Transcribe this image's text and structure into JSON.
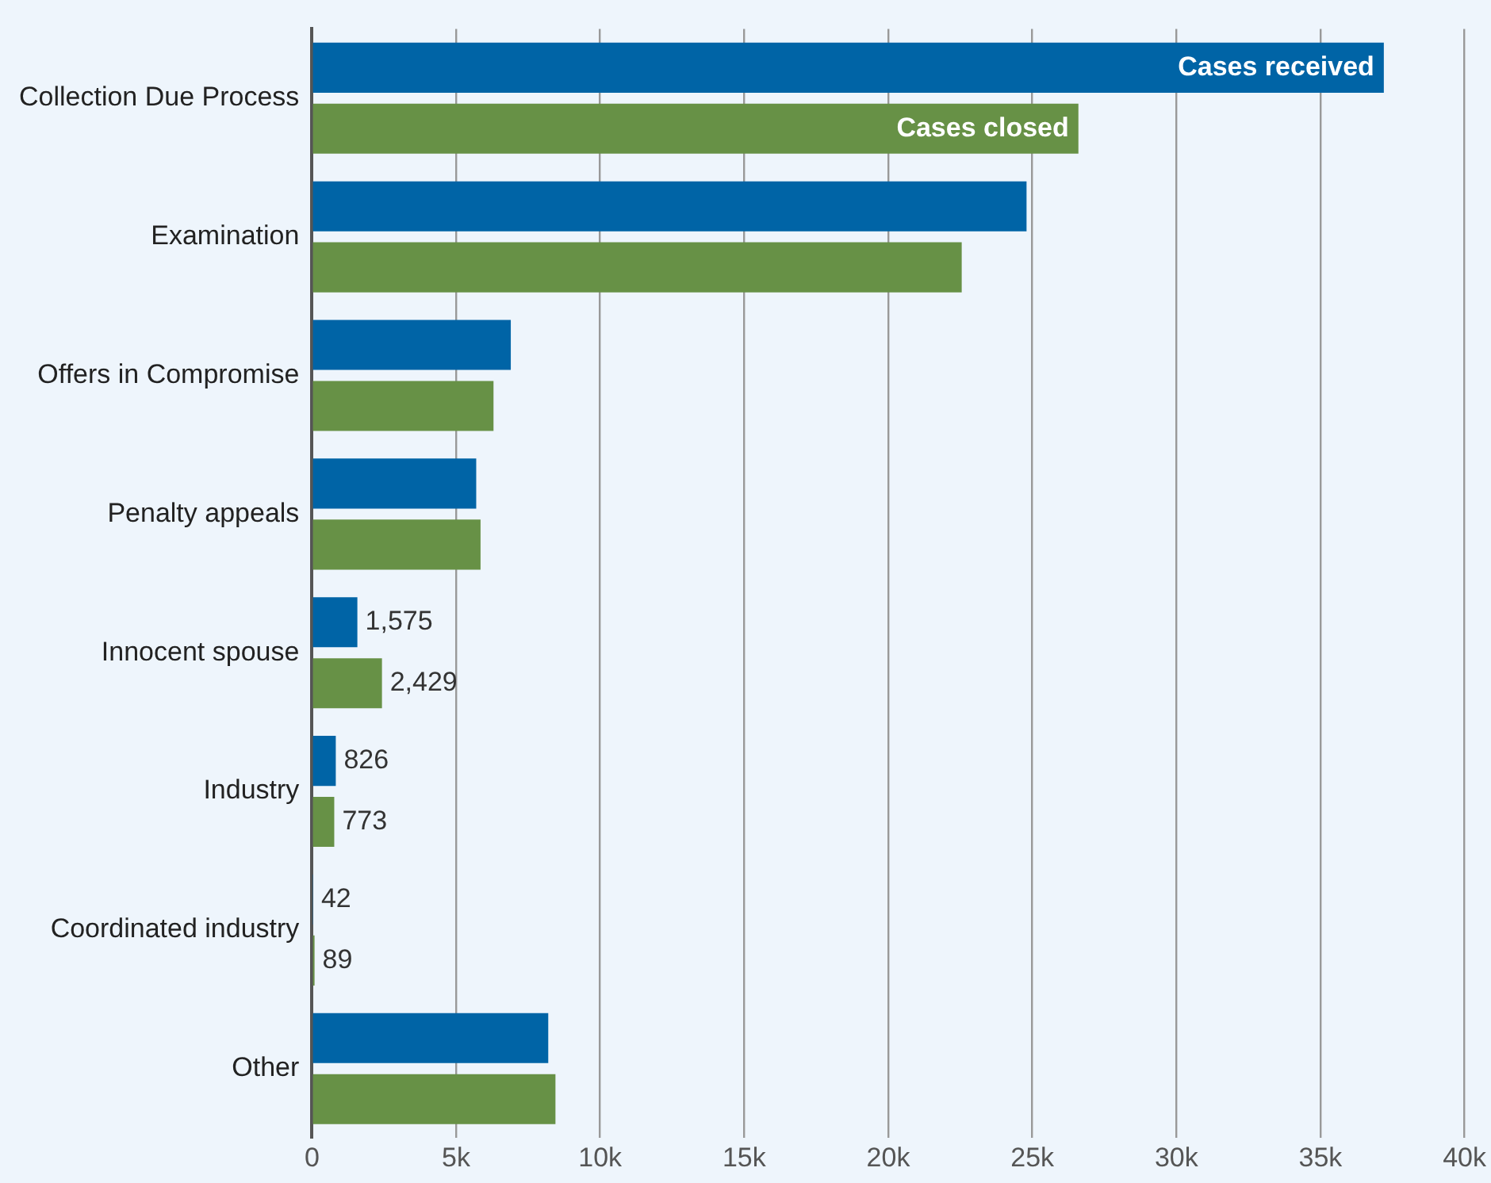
{
  "chart_data": {
    "type": "bar",
    "orientation": "horizontal",
    "categories": [
      "Collection Due Process",
      "Examination",
      "Offers in Compromise",
      "Penalty appeals",
      "Innocent spouse",
      "Industry",
      "Coordinated industry",
      "Other"
    ],
    "series": [
      {
        "name": "Cases received",
        "color": "#0064a6",
        "values": [
          37200,
          24800,
          6900,
          5700,
          1575,
          826,
          42,
          8200
        ],
        "value_labels": [
          null,
          null,
          null,
          null,
          "1,575",
          "826",
          "42",
          null
        ]
      },
      {
        "name": "Cases closed",
        "color": "#679146",
        "values": [
          26600,
          22550,
          6300,
          5850,
          2429,
          773,
          89,
          8450
        ],
        "value_labels": [
          null,
          null,
          null,
          null,
          "2,429",
          "773",
          "89",
          null
        ]
      }
    ],
    "xlim": [
      0,
      40000
    ],
    "xticks": [
      {
        "value": 0,
        "label": "0"
      },
      {
        "value": 5000,
        "label": "5k"
      },
      {
        "value": 10000,
        "label": "10k"
      },
      {
        "value": 15000,
        "label": "15k"
      },
      {
        "value": 20000,
        "label": "20k"
      },
      {
        "value": 25000,
        "label": "25k"
      },
      {
        "value": 30000,
        "label": "30k"
      },
      {
        "value": 35000,
        "label": "35k"
      },
      {
        "value": 40000,
        "label": "40k"
      }
    ],
    "grid": "x",
    "legend": false
  }
}
